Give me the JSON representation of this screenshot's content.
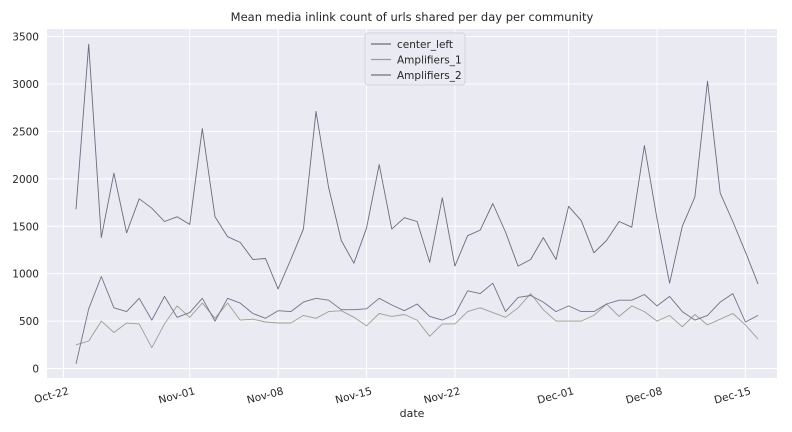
{
  "chart_data": {
    "type": "line",
    "title": "Mean media inlink count of urls shared per day per community",
    "xlabel": "date",
    "ylabel": "",
    "x_start": "2023-10-23",
    "x": [
      "Oct-23",
      "Oct-24",
      "Oct-25",
      "Oct-26",
      "Oct-27",
      "Oct-28",
      "Oct-29",
      "Oct-30",
      "Oct-31",
      "Nov-01",
      "Nov-02",
      "Nov-03",
      "Nov-04",
      "Nov-05",
      "Nov-06",
      "Nov-07",
      "Nov-08",
      "Nov-09",
      "Nov-10",
      "Nov-11",
      "Nov-12",
      "Nov-13",
      "Nov-14",
      "Nov-15",
      "Nov-16",
      "Nov-17",
      "Nov-18",
      "Nov-19",
      "Nov-20",
      "Nov-21",
      "Nov-22",
      "Nov-23",
      "Nov-24",
      "Nov-25",
      "Nov-26",
      "Nov-27",
      "Nov-28",
      "Nov-29",
      "Nov-30",
      "Dec-01",
      "Dec-02",
      "Dec-03",
      "Dec-04",
      "Dec-05",
      "Dec-06",
      "Dec-07",
      "Dec-08",
      "Dec-09",
      "Dec-10",
      "Dec-11",
      "Dec-12",
      "Dec-13",
      "Dec-14",
      "Dec-15",
      "Dec-16"
    ],
    "xticks": [
      {
        "label": "Oct-22",
        "day": 0
      },
      {
        "label": "Nov-01",
        "day": 10
      },
      {
        "label": "Nov-08",
        "day": 17
      },
      {
        "label": "Nov-15",
        "day": 24
      },
      {
        "label": "Nov-22",
        "day": 31
      },
      {
        "label": "Dec-01",
        "day": 40
      },
      {
        "label": "Dec-08",
        "day": 47
      },
      {
        "label": "Dec-15",
        "day": 54
      }
    ],
    "xlim": [
      -1.3,
      56.5
    ],
    "ylim": [
      -100,
      3580
    ],
    "yticks": [
      0,
      500,
      1000,
      1500,
      2000,
      2500,
      3000,
      3500
    ],
    "grid": true,
    "legend_position": "top-center",
    "series": [
      {
        "name": "center_left",
        "color": "#6b6b80",
        "values": [
          1680,
          3420,
          1380,
          2060,
          1430,
          1790,
          1690,
          1550,
          1600,
          1520,
          2530,
          1600,
          1390,
          1330,
          1150,
          1160,
          840,
          1150,
          1470,
          2710,
          1910,
          1350,
          1110,
          1480,
          2150,
          1470,
          1590,
          1550,
          1120,
          1800,
          1080,
          1400,
          1460,
          1740,
          1440,
          1080,
          1150,
          1380,
          1150,
          1710,
          1560,
          1220,
          1350,
          1550,
          1490,
          2350,
          1580,
          900,
          1500,
          1810,
          3030,
          1850,
          1550,
          1230,
          890
        ]
      },
      {
        "name": "Amplifiers_1",
        "color": "#9aa093",
        "values": [
          250,
          290,
          500,
          380,
          480,
          470,
          220,
          470,
          660,
          540,
          690,
          530,
          690,
          510,
          520,
          490,
          480,
          480,
          560,
          530,
          600,
          610,
          540,
          450,
          580,
          550,
          570,
          510,
          340,
          470,
          470,
          600,
          640,
          590,
          540,
          640,
          790,
          620,
          500,
          500,
          500,
          560,
          680,
          550,
          660,
          600,
          500,
          560,
          440,
          570,
          460,
          520,
          580,
          460,
          310
        ]
      },
      {
        "name": "Amplifiers_2",
        "color": "#72728a",
        "values": [
          50,
          630,
          970,
          640,
          600,
          740,
          510,
          760,
          540,
          590,
          740,
          500,
          740,
          690,
          580,
          530,
          610,
          600,
          700,
          740,
          720,
          620,
          620,
          630,
          740,
          670,
          610,
          680,
          550,
          510,
          570,
          820,
          790,
          900,
          600,
          750,
          770,
          700,
          600,
          660,
          600,
          600,
          680,
          720,
          720,
          780,
          660,
          760,
          600,
          510,
          560,
          700,
          790,
          490,
          560
        ]
      }
    ]
  }
}
